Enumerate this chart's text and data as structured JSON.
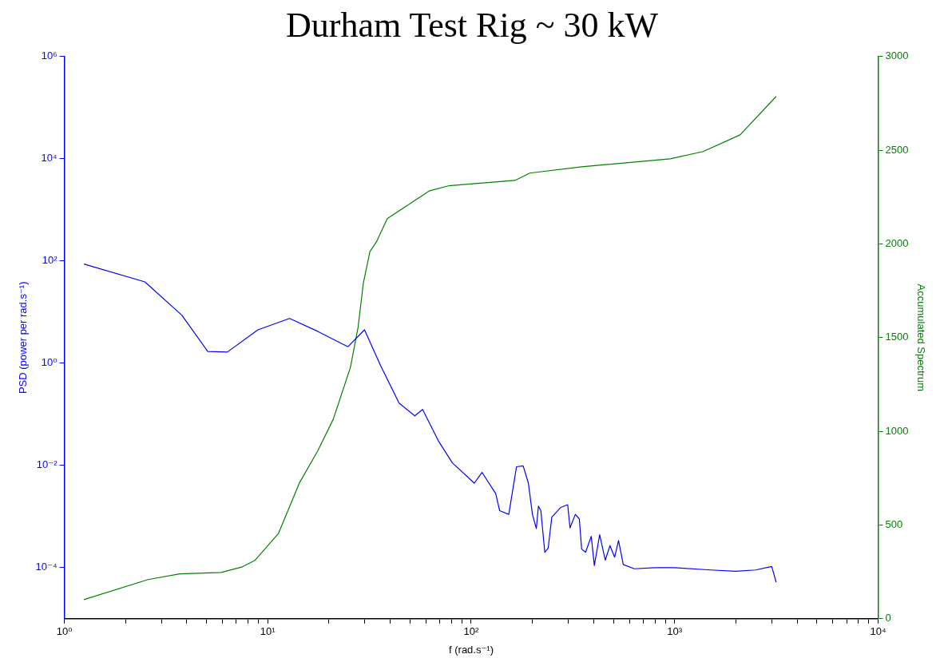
{
  "chart_data": {
    "type": "line",
    "title": "Durham Test Rig ~ 30 kW",
    "xlabel": "f (rad.s⁻¹)",
    "ylabel": "PSD (power per rad.s⁻¹)",
    "y2label": "Accumulated Spectrum",
    "log": "xy",
    "grid": false,
    "legend": false,
    "marker": "none",
    "line_style": "solid",
    "xlim": [
      1,
      10000
    ],
    "xticks": [
      {
        "value": 1,
        "label": "10⁰"
      },
      {
        "value": 2,
        "label": null
      },
      {
        "value": 3,
        "label": null
      },
      {
        "value": 4,
        "label": null
      },
      {
        "value": 5,
        "label": null
      },
      {
        "value": 6,
        "label": null
      },
      {
        "value": 7,
        "label": null
      },
      {
        "value": 8,
        "label": null
      },
      {
        "value": 9,
        "label": null
      },
      {
        "value": 10,
        "label": "10¹"
      },
      {
        "value": 20,
        "label": null
      },
      {
        "value": 30,
        "label": null
      },
      {
        "value": 40,
        "label": null
      },
      {
        "value": 50,
        "label": null
      },
      {
        "value": 60,
        "label": null
      },
      {
        "value": 70,
        "label": null
      },
      {
        "value": 80,
        "label": null
      },
      {
        "value": 90,
        "label": null
      },
      {
        "value": 100,
        "label": "10²"
      },
      {
        "value": 200,
        "label": null
      },
      {
        "value": 300,
        "label": null
      },
      {
        "value": 400,
        "label": null
      },
      {
        "value": 500,
        "label": null
      },
      {
        "value": 600,
        "label": null
      },
      {
        "value": 700,
        "label": null
      },
      {
        "value": 800,
        "label": null
      },
      {
        "value": 900,
        "label": null
      },
      {
        "value": 1000,
        "label": "10³"
      },
      {
        "value": 2000,
        "label": null
      },
      {
        "value": 3000,
        "label": null
      },
      {
        "value": 4000,
        "label": null
      },
      {
        "value": 5000,
        "label": null
      },
      {
        "value": 6000,
        "label": null
      },
      {
        "value": 7000,
        "label": null
      },
      {
        "value": 8000,
        "label": null
      },
      {
        "value": 9000,
        "label": null
      },
      {
        "value": 10000,
        "label": "10⁴"
      }
    ],
    "ylim": [
      1e-05,
      1000000
    ],
    "yticks": [
      {
        "value": 0.0001,
        "label": "10⁻⁴"
      },
      {
        "value": 0.01,
        "label": "10⁻²"
      },
      {
        "value": 1,
        "label": "10⁰"
      },
      {
        "value": 100,
        "label": "10²"
      },
      {
        "value": 10000,
        "label": "10⁴"
      },
      {
        "value": 1000000,
        "label": "10⁶"
      }
    ],
    "y2lim": [
      0,
      3000
    ],
    "y2ticks": [
      0,
      500,
      1000,
      1500,
      2000,
      2500,
      3000
    ],
    "series": [
      {
        "color": "#0000ff",
        "axis": "y",
        "x": [
          1.248,
          2.49,
          3.78,
          5.07,
          6.33,
          8.95,
          12.8,
          17.6,
          24.8,
          29.9,
          35.7,
          44.2,
          52.8,
          57.7,
          68.9,
          80.8,
          103.6,
          113,
          132,
          138,
          153,
          167,
          180,
          191,
          200,
          209,
          214,
          220,
          230,
          239,
          249,
          275,
          298,
          306,
          325,
          340,
          349,
          365,
          389,
          403,
          428,
          456,
          481,
          507,
          530,
          559,
          633,
          800,
          1000,
          1500,
          2000,
          2500,
          3000,
          3155
        ],
        "values": [
          87,
          39,
          8.7,
          1.7,
          1.65,
          4.5,
          7.5,
          4.2,
          2.1,
          4.5,
          0.93,
          0.166,
          0.093,
          0.124,
          0.0305,
          0.0112,
          0.0045,
          0.0073,
          0.0028,
          0.0013,
          0.0011,
          0.0094,
          0.0098,
          0.0045,
          0.0011,
          0.00058,
          0.0016,
          0.0013,
          0.0002,
          0.00024,
          0.00097,
          0.0015,
          0.0017,
          0.0006,
          0.0011,
          0.0009,
          0.00023,
          0.0002,
          0.00041,
          0.00011,
          0.00044,
          0.00014,
          0.00027,
          0.00016,
          0.00034,
          0.000115,
          9.5e-05,
          0.0001,
          0.0001,
          9e-05,
          8.5e-05,
          9e-05,
          0.000105,
          5.2e-05
        ]
      },
      {
        "color": "#008000",
        "axis": "y2",
        "x": [
          1.248,
          2.58,
          3.69,
          5.9,
          7.5,
          8.64,
          11.3,
          14.3,
          17.6,
          21,
          25.5,
          27.8,
          29.5,
          31.8,
          34.2,
          38.7,
          62.5,
          77.3,
          164,
          194,
          349,
          952,
          1381,
          2099,
          3155
        ],
        "values": [
          102,
          209,
          239,
          247,
          277,
          311,
          456,
          724,
          895,
          1065,
          1342,
          1555,
          1790,
          1960,
          2011,
          2135,
          2284,
          2310,
          2339,
          2378,
          2412,
          2454,
          2493,
          2582,
          2787
        ]
      }
    ]
  }
}
